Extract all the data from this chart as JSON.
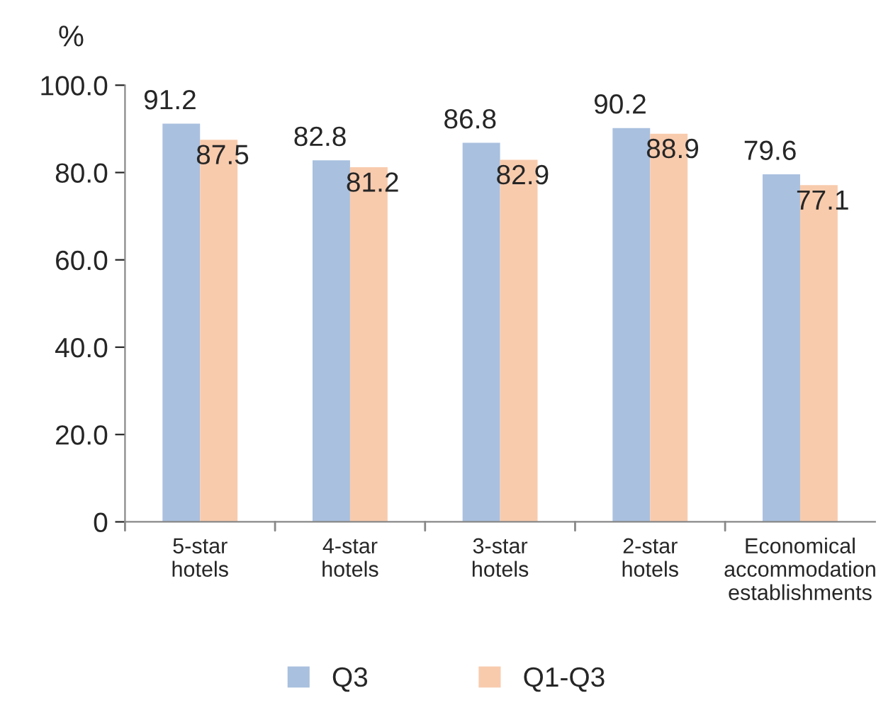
{
  "chart_data": {
    "type": "bar",
    "ylabel": "%",
    "categories": [
      "5-star\nhotels",
      "4-star\nhotels",
      "3-star\nhotels",
      "2-star\nhotels",
      "Economical\naccommodation\nestablishments"
    ],
    "series": [
      {
        "name": "Q3",
        "color": "#a9c0df",
        "values": [
          91.2,
          82.8,
          86.8,
          90.2,
          79.6
        ]
      },
      {
        "name": "Q1-Q3",
        "color": "#f8cbad",
        "values": [
          87.5,
          81.2,
          82.9,
          88.9,
          77.1
        ]
      }
    ],
    "ylim": [
      0,
      100
    ],
    "yticks": [
      0,
      {
        "value": 20,
        "label": "20.0"
      },
      {
        "value": 40,
        "label": "40.0"
      },
      {
        "value": 60,
        "label": "60.0"
      },
      {
        "value": 80,
        "label": "80.0"
      },
      {
        "value": 100,
        "label": "100.0"
      }
    ],
    "data_labels": true,
    "grid": false,
    "legend": "bottom"
  }
}
